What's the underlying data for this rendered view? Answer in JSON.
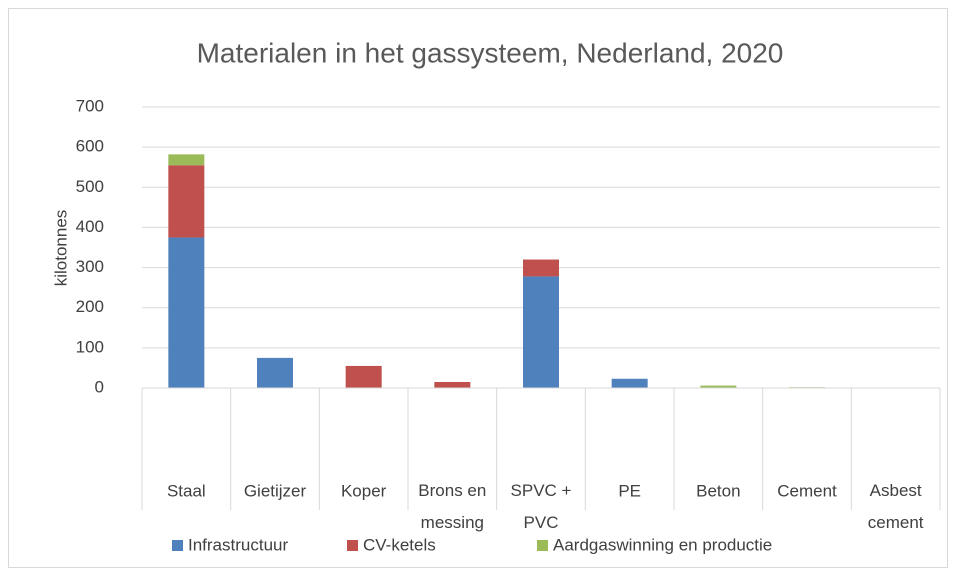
{
  "chart_data": {
    "type": "bar",
    "stacked": true,
    "title": "Materialen in het gassysteem, Nederland, 2020",
    "y_label": "kilotonnes",
    "categories": [
      "Staal",
      "Gietijzer",
      "Koper",
      "Brons en messing",
      "SPVC + PVC",
      "PE",
      "Beton",
      "Cement",
      "Asbest cement"
    ],
    "series": [
      {
        "name": "Infrastructuur",
        "color": "#4f81bd",
        "values": [
          375,
          75,
          0,
          0,
          278,
          23,
          0,
          0,
          0
        ]
      },
      {
        "name": "CV-ketels",
        "color": "#c0504d",
        "values": [
          180,
          0,
          55,
          15,
          42,
          0,
          0,
          0,
          0
        ]
      },
      {
        "name": "Aardgaswinning en productie",
        "color": "#9bbb59",
        "values": [
          27,
          0,
          0,
          0,
          0,
          0,
          6,
          2,
          0
        ]
      }
    ],
    "ylim": [
      0,
      700
    ],
    "yticks": [
      0,
      100,
      200,
      300,
      400,
      500,
      600,
      700
    ],
    "grid": true,
    "legend": "bottom"
  }
}
